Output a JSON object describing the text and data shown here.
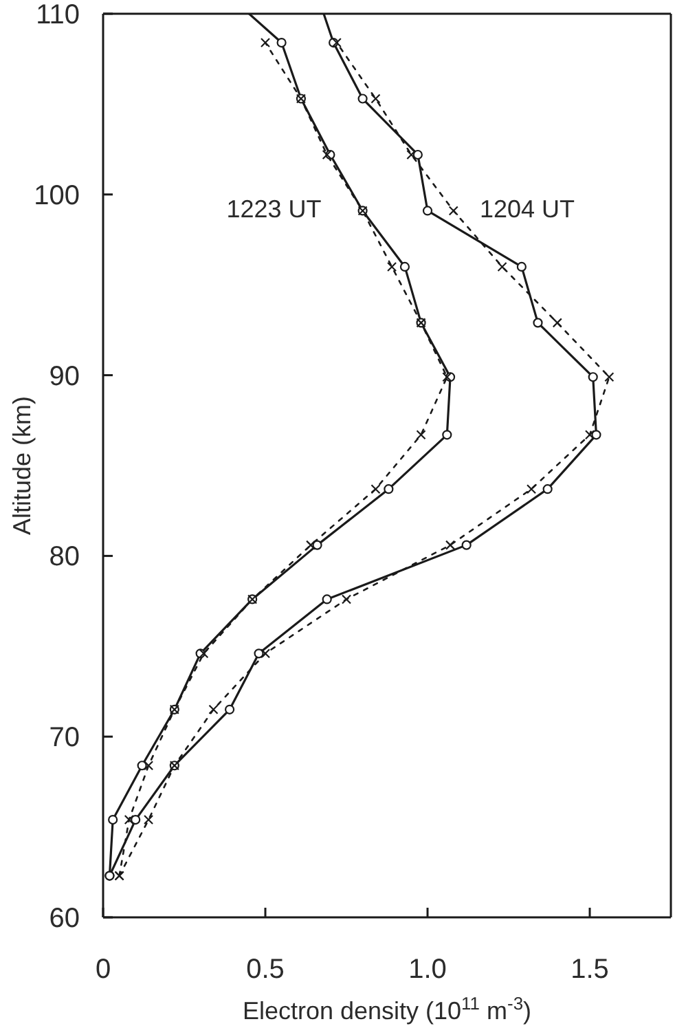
{
  "chart_data": {
    "type": "line",
    "xlabel": "Electron density (10$^{11}$ m$^{-3}$)",
    "ylabel": "Altitude (km)",
    "xlim": [
      0,
      1.75
    ],
    "xticks": [
      0,
      0.5,
      {
        "value": 1,
        "label": "1.0"
      },
      1.5
    ],
    "ylim": [
      60,
      110
    ],
    "yticks": [
      60,
      70,
      80,
      90,
      100,
      110
    ],
    "series": [
      {
        "name": "1223 UT",
        "color": "#1a1a1a",
        "marker": "circle",
        "line_style": "solid",
        "x": [
          0.02,
          0.03,
          0.12,
          0.22,
          0.3,
          0.46,
          0.66,
          0.88,
          1.06,
          1.07,
          0.98,
          0.93,
          0.8,
          0.7,
          0.61,
          0.55
        ],
        "values": [
          62.3,
          65.4,
          68.4,
          71.5,
          74.6,
          77.6,
          80.6,
          83.7,
          86.7,
          89.9,
          92.9,
          96.0,
          99.1,
          102.2,
          105.3,
          108.4
        ]
      },
      {
        "color": "#1a1a1a",
        "marker": "none",
        "line_style": "solid",
        "x": [
          0.55,
          0.45
        ],
        "values": [
          108.4,
          110
        ]
      },
      {
        "color": "#1a1a1a",
        "marker": "cross",
        "line_style": "dashed",
        "x": [
          0.05,
          0.08,
          0.14,
          0.22,
          0.31,
          0.46,
          0.64,
          0.84,
          0.98,
          1.06,
          0.98,
          0.89,
          0.8,
          0.69,
          0.61,
          0.5
        ],
        "values": [
          62.3,
          65.4,
          68.4,
          71.5,
          74.6,
          77.6,
          80.6,
          83.7,
          86.7,
          89.9,
          92.9,
          96.0,
          99.1,
          102.2,
          105.3,
          108.4
        ]
      },
      {
        "name": "1204 UT",
        "color": "#1a1a1a",
        "marker": "circle",
        "line_style": "solid",
        "x": [
          0.02,
          0.1,
          0.22,
          0.39,
          0.48,
          0.69,
          1.12,
          1.37,
          1.52,
          1.51,
          1.34,
          1.29,
          1.0,
          0.97,
          0.8,
          0.71
        ],
        "values": [
          62.3,
          65.4,
          68.4,
          71.5,
          74.6,
          77.6,
          80.6,
          83.7,
          86.7,
          89.9,
          92.9,
          96.0,
          99.1,
          102.2,
          105.3,
          108.4
        ]
      },
      {
        "color": "#1a1a1a",
        "marker": "none",
        "line_style": "solid",
        "x": [
          0.71,
          0.68
        ],
        "values": [
          108.4,
          110
        ]
      },
      {
        "color": "#1a1a1a",
        "marker": "cross",
        "line_style": "dashed",
        "x": [
          0.05,
          0.14,
          0.22,
          0.34,
          0.5,
          0.75,
          1.07,
          1.32,
          1.5,
          1.56,
          1.4,
          1.23,
          1.08,
          0.95,
          0.84,
          0.72
        ],
        "values": [
          62.3,
          65.4,
          68.4,
          71.5,
          74.6,
          77.6,
          80.6,
          83.7,
          86.7,
          89.9,
          92.9,
          96.0,
          99.1,
          102.2,
          105.3,
          108.4
        ]
      }
    ]
  }
}
